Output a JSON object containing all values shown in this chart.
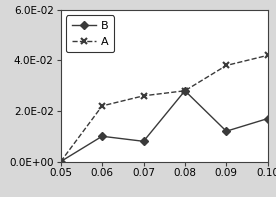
{
  "x": [
    0.05,
    0.06,
    0.07,
    0.08,
    0.09,
    0.1
  ],
  "B": [
    0.0,
    0.01,
    0.008,
    0.028,
    0.012,
    0.017
  ],
  "A": [
    0.0,
    0.022,
    0.026,
    0.028,
    0.038,
    0.042
  ],
  "xlim": [
    0.05,
    0.1
  ],
  "ylim": [
    0.0,
    0.06
  ],
  "yticks": [
    0.0,
    0.02,
    0.04,
    0.06
  ],
  "ytick_labels": [
    "0.0E+00",
    "2.0E-02",
    "4.0E-02",
    "6.0E-02"
  ],
  "xticks": [
    0.05,
    0.06,
    0.07,
    0.08,
    0.09,
    0.1
  ],
  "xtick_labels": [
    "0.05",
    "0.06",
    "0.07",
    "0.08",
    "0.09",
    "0.10"
  ],
  "legend_labels": [
    "B",
    "A"
  ],
  "line_color": "#3a3a3a",
  "background_color": "#d8d8d8",
  "plot_bg_color": "#ffffff",
  "tick_fontsize": 7.5,
  "legend_fontsize": 8
}
